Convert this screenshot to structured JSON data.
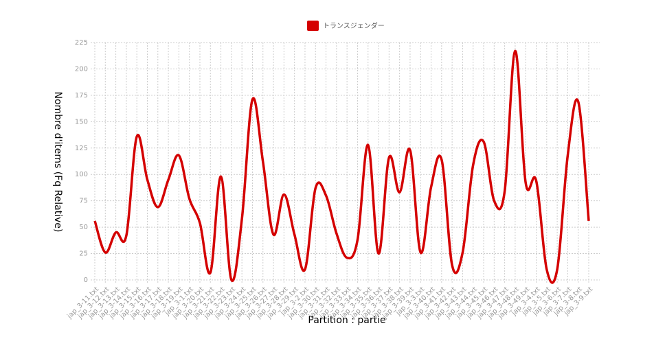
{
  "chart_data": {
    "type": "line",
    "categories": [
      "jap_3-11.txt",
      "jap_3-12.txt",
      "jap_3-13.txt",
      "jap_3-14.txt",
      "jap_3-15.txt",
      "jap_3-16.txt",
      "jap_3-17.txt",
      "jap_3-18.txt",
      "jap_3-19.txt",
      "jap_3-1.txt",
      "jap_3-20.txt",
      "jap_3-21.txt",
      "jap_3-22.txt",
      "jap_3-23.txt",
      "jap_3-24.txt",
      "jap_3-25.txt",
      "jap_3-26.txt",
      "jap_3-27.txt",
      "jap_3-28.txt",
      "jap_3-29.txt",
      "jap_3-2.txt",
      "jap_3-30.txt",
      "jap_3-31.txt",
      "jap_3-32.txt",
      "jap_3-33.txt",
      "jap_3-34.txt",
      "jap_3-35.txt",
      "jap_3-36.txt",
      "jap_3-37.txt",
      "jap_3-38.txt",
      "jap_3-39.txt",
      "jap_3-3.txt",
      "jap_3-40.txt",
      "jap_3-41.txt",
      "jap_3-42.txt",
      "jap_3-43.txt",
      "jap_3-44.txt",
      "jap_3-45.txt",
      "jap_3-46.txt",
      "jap_3-47.txt",
      "jap_3-48.txt",
      "jap_3-49.txt",
      "jap_3-4.txt",
      "jap_3-5.txt",
      "jap_3-6.txt",
      "jap_3-7.txt",
      "jap_3-8.txt",
      "jap_3-9.txt"
    ],
    "series": [
      {
        "name": "トランスジェンダー",
        "color": "#d40000",
        "values": [
          56,
          26,
          45,
          42,
          136,
          95,
          69,
          95,
          118,
          77,
          54,
          7,
          98,
          0,
          58,
          171,
          112,
          43,
          81,
          43,
          10,
          87,
          80,
          44,
          21,
          38,
          128,
          25,
          116,
          83,
          123,
          26,
          88,
          114,
          14,
          26,
          109,
          131,
          75,
          84,
          217,
          92,
          94,
          10,
          10,
          118,
          169,
          56
        ]
      }
    ],
    "ylim": [
      0,
      225
    ],
    "yticks": [
      0,
      25,
      50,
      75,
      100,
      125,
      150,
      175,
      200,
      225
    ],
    "x_label": "Partition : partie",
    "y_label": "Nombre d'items (Fq Relative)",
    "grid": true,
    "legend": "top"
  }
}
